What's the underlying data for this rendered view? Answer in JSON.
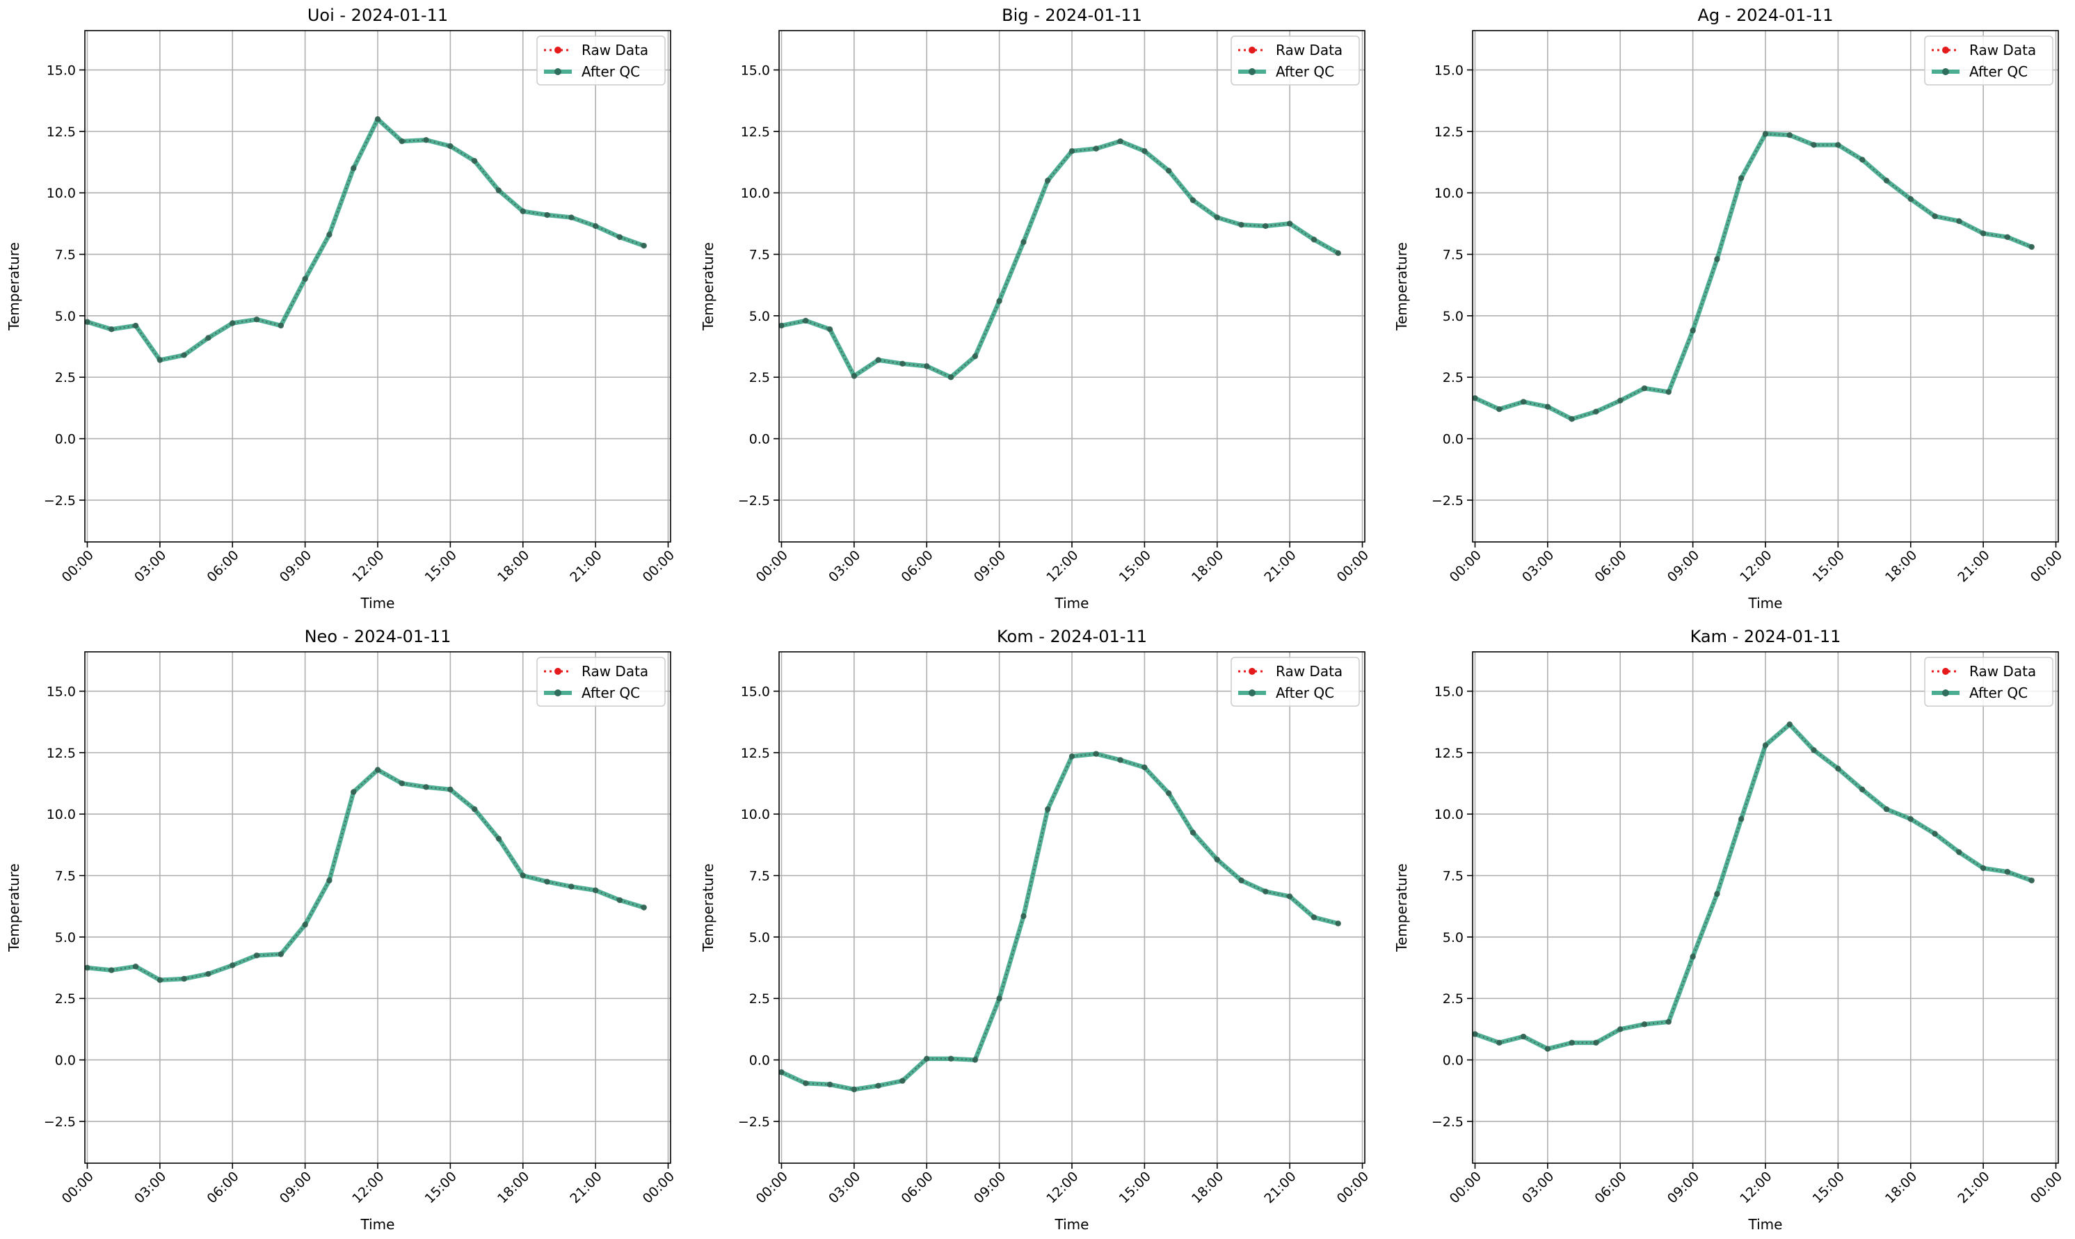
{
  "figure": {
    "background": "#ffffff"
  },
  "colors": {
    "raw": "#e41a1c",
    "qc": "#2a9d7c",
    "grid": "#b0b0b0"
  },
  "chart_data": [
    {
      "type": "line",
      "title": "Uoi - 2024-01-11",
      "xlabel": "Time",
      "ylabel": "Temperature",
      "ylim": [
        -4.2,
        16.6
      ],
      "xlim": [
        -0.1,
        24.1
      ],
      "x_ticks": [
        "00:00",
        "03:00",
        "06:00",
        "09:00",
        "12:00",
        "15:00",
        "18:00",
        "21:00",
        "00:00"
      ],
      "y_ticks": [
        "−2.5",
        "0.0",
        "2.5",
        "5.0",
        "7.5",
        "10.0",
        "12.5",
        "15.0"
      ],
      "grid": true,
      "legend": "top-right",
      "series": [
        {
          "name": "Raw Data",
          "values": [
            4.75,
            4.45,
            4.6,
            3.2,
            3.4,
            4.1,
            4.7,
            4.85,
            4.6,
            6.5,
            8.3,
            11.0,
            13.0,
            12.1,
            12.15,
            11.9,
            11.3,
            10.1,
            9.25,
            9.1,
            9.0,
            8.65,
            8.2,
            7.85
          ]
        },
        {
          "name": "After QC",
          "values": [
            4.75,
            4.45,
            4.6,
            3.2,
            3.4,
            4.1,
            4.7,
            4.85,
            4.6,
            6.5,
            8.3,
            11.0,
            13.0,
            12.1,
            12.15,
            11.9,
            11.3,
            10.1,
            9.25,
            9.1,
            9.0,
            8.65,
            8.2,
            7.85
          ]
        }
      ]
    },
    {
      "type": "line",
      "title": "Big - 2024-01-11",
      "xlabel": "Time",
      "ylabel": "Temperature",
      "ylim": [
        -4.2,
        16.6
      ],
      "xlim": [
        -0.1,
        24.1
      ],
      "x_ticks": [
        "00:00",
        "03:00",
        "06:00",
        "09:00",
        "12:00",
        "15:00",
        "18:00",
        "21:00",
        "00:00"
      ],
      "y_ticks": [
        "−2.5",
        "0.0",
        "2.5",
        "5.0",
        "7.5",
        "10.0",
        "12.5",
        "15.0"
      ],
      "grid": true,
      "legend": "top-right",
      "series": [
        {
          "name": "Raw Data",
          "values": [
            4.6,
            4.8,
            4.45,
            2.55,
            3.2,
            3.05,
            2.95,
            2.5,
            3.35,
            5.6,
            8.0,
            10.5,
            11.7,
            11.8,
            12.1,
            11.7,
            10.9,
            9.7,
            9.0,
            8.7,
            8.65,
            8.75,
            8.1,
            7.55
          ]
        },
        {
          "name": "After QC",
          "values": [
            4.6,
            4.8,
            4.45,
            2.55,
            3.2,
            3.05,
            2.95,
            2.5,
            3.35,
            5.6,
            8.0,
            10.5,
            11.7,
            11.8,
            12.1,
            11.7,
            10.9,
            9.7,
            9.0,
            8.7,
            8.65,
            8.75,
            8.1,
            7.55
          ]
        }
      ]
    },
    {
      "type": "line",
      "title": "Ag - 2024-01-11",
      "xlabel": "Time",
      "ylabel": "Temperature",
      "ylim": [
        -4.2,
        16.6
      ],
      "xlim": [
        -0.1,
        24.1
      ],
      "x_ticks": [
        "00:00",
        "03:00",
        "06:00",
        "09:00",
        "12:00",
        "15:00",
        "18:00",
        "21:00",
        "00:00"
      ],
      "y_ticks": [
        "−2.5",
        "0.0",
        "2.5",
        "5.0",
        "7.5",
        "10.0",
        "12.5",
        "15.0"
      ],
      "grid": true,
      "legend": "top-right",
      "series": [
        {
          "name": "Raw Data",
          "values": [
            1.65,
            1.2,
            1.5,
            1.3,
            0.8,
            1.1,
            1.55,
            2.05,
            1.9,
            4.4,
            7.3,
            10.6,
            12.4,
            12.35,
            11.95,
            11.95,
            11.35,
            10.5,
            9.75,
            9.05,
            8.85,
            8.35,
            8.2,
            7.8
          ]
        },
        {
          "name": "After QC",
          "values": [
            1.65,
            1.2,
            1.5,
            1.3,
            0.8,
            1.1,
            1.55,
            2.05,
            1.9,
            4.4,
            7.3,
            10.6,
            12.4,
            12.35,
            11.95,
            11.95,
            11.35,
            10.5,
            9.75,
            9.05,
            8.85,
            8.35,
            8.2,
            7.8
          ]
        }
      ]
    },
    {
      "type": "line",
      "title": "Neo - 2024-01-11",
      "xlabel": "Time",
      "ylabel": "Temperature",
      "ylim": [
        -4.2,
        16.6
      ],
      "xlim": [
        -0.1,
        24.1
      ],
      "x_ticks": [
        "00:00",
        "03:00",
        "06:00",
        "09:00",
        "12:00",
        "15:00",
        "18:00",
        "21:00",
        "00:00"
      ],
      "y_ticks": [
        "−2.5",
        "0.0",
        "2.5",
        "5.0",
        "7.5",
        "10.0",
        "12.5",
        "15.0"
      ],
      "grid": true,
      "legend": "top-right",
      "series": [
        {
          "name": "Raw Data",
          "values": [
            3.75,
            3.65,
            3.8,
            3.25,
            3.3,
            3.5,
            3.85,
            4.25,
            4.3,
            5.5,
            7.3,
            10.9,
            11.8,
            11.25,
            11.1,
            11.0,
            10.2,
            9.0,
            7.5,
            7.25,
            7.05,
            6.9,
            6.5,
            6.2
          ]
        },
        {
          "name": "After QC",
          "values": [
            3.75,
            3.65,
            3.8,
            3.25,
            3.3,
            3.5,
            3.85,
            4.25,
            4.3,
            5.5,
            7.3,
            10.9,
            11.8,
            11.25,
            11.1,
            11.0,
            10.2,
            9.0,
            7.5,
            7.25,
            7.05,
            6.9,
            6.5,
            6.2
          ]
        }
      ]
    },
    {
      "type": "line",
      "title": "Kom - 2024-01-11",
      "xlabel": "Time",
      "ylabel": "Temperature",
      "ylim": [
        -4.2,
        16.6
      ],
      "xlim": [
        -0.1,
        24.1
      ],
      "x_ticks": [
        "00:00",
        "03:00",
        "06:00",
        "09:00",
        "12:00",
        "15:00",
        "18:00",
        "21:00",
        "00:00"
      ],
      "y_ticks": [
        "−2.5",
        "0.0",
        "2.5",
        "5.0",
        "7.5",
        "10.0",
        "12.5",
        "15.0"
      ],
      "grid": true,
      "legend": "top-right",
      "series": [
        {
          "name": "Raw Data",
          "values": [
            -0.5,
            -0.95,
            -1.0,
            -1.2,
            -1.05,
            -0.85,
            0.05,
            0.05,
            0.0,
            2.5,
            5.85,
            10.2,
            12.35,
            12.45,
            12.2,
            11.9,
            10.85,
            9.25,
            8.15,
            7.3,
            6.85,
            6.65,
            5.8,
            5.55
          ]
        },
        {
          "name": "After QC",
          "values": [
            -0.5,
            -0.95,
            -1.0,
            -1.2,
            -1.05,
            -0.85,
            0.05,
            0.05,
            0.0,
            2.5,
            5.85,
            10.2,
            12.35,
            12.45,
            12.2,
            11.9,
            10.85,
            9.25,
            8.15,
            7.3,
            6.85,
            6.65,
            5.8,
            5.55
          ]
        }
      ]
    },
    {
      "type": "line",
      "title": "Kam - 2024-01-11",
      "xlabel": "Time",
      "ylabel": "Temperature",
      "ylim": [
        -4.2,
        16.6
      ],
      "xlim": [
        -0.1,
        24.1
      ],
      "x_ticks": [
        "00:00",
        "03:00",
        "06:00",
        "09:00",
        "12:00",
        "15:00",
        "18:00",
        "21:00",
        "00:00"
      ],
      "y_ticks": [
        "−2.5",
        "0.0",
        "2.5",
        "5.0",
        "7.5",
        "10.0",
        "12.5",
        "15.0"
      ],
      "grid": true,
      "legend": "top-right",
      "series": [
        {
          "name": "Raw Data",
          "values": [
            1.05,
            0.7,
            0.95,
            0.45,
            0.7,
            0.7,
            1.25,
            1.45,
            1.55,
            4.2,
            6.75,
            9.8,
            12.8,
            13.65,
            12.6,
            11.85,
            11.0,
            10.2,
            9.8,
            9.2,
            8.45,
            7.8,
            7.65,
            7.3
          ]
        },
        {
          "name": "After QC",
          "values": [
            1.05,
            0.7,
            0.95,
            0.45,
            0.7,
            0.7,
            1.25,
            1.45,
            1.55,
            4.2,
            6.75,
            9.8,
            12.8,
            13.65,
            12.6,
            11.85,
            11.0,
            10.2,
            9.8,
            9.2,
            8.45,
            7.8,
            7.65,
            7.3
          ]
        }
      ]
    }
  ]
}
